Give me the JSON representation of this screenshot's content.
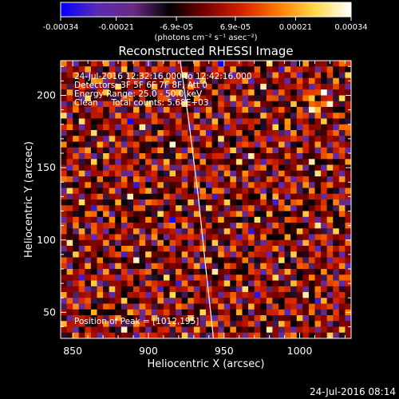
{
  "colorbar": {
    "tick_labels": [
      "-0.00034",
      "-0.00021",
      "-6.9e-05",
      "6.9e-05",
      "0.00021",
      "0.00034"
    ],
    "tick_values": [
      -0.00034,
      -0.00021,
      -6.9e-05,
      6.9e-05,
      0.00021,
      0.00034
    ],
    "range": [
      -0.00034,
      0.00034
    ],
    "unit_label": "(photons cm⁻² s⁻¹ asec⁻²)",
    "colors": [
      "#0000ff",
      "#5a2ab4",
      "#6a2a86",
      "#000000",
      "#7a0000",
      "#d42200",
      "#ff7a00",
      "#ffd84a",
      "#ffffff"
    ]
  },
  "chart_data": {
    "type": "heatmap",
    "title": "Reconstructed RHESSI Image",
    "xlabel": "Heliocentric X (arcsec)",
    "ylabel": "Heliocentric Y (arcsec)",
    "xlim": [
      842,
      1034
    ],
    "ylim": [
      32,
      224
    ],
    "x_ticks": [
      850,
      900,
      950,
      1000
    ],
    "y_ticks": [
      50,
      100,
      150,
      200
    ],
    "value_range": [
      -0.00034,
      0.00034
    ],
    "peak": [
      1012,
      195
    ],
    "limb_curve": {
      "x": [
        921,
        927,
        933,
        938,
        943
      ],
      "y": [
        224,
        180,
        130,
        80,
        32
      ]
    },
    "annotations": [
      "24-Jul-2016 12:32:16.000 to 12:42:16.000",
      "Detectors: 3F 5F 6F 7F 8F, Att 0",
      "Energy Range: 25.0 - 50.0 keV",
      "Clean     Total counts: 5.68E+03",
      "Position of Peak = [1012,195]"
    ]
  },
  "footer": {
    "timestamp": "24-Jul-2016 08:14"
  }
}
